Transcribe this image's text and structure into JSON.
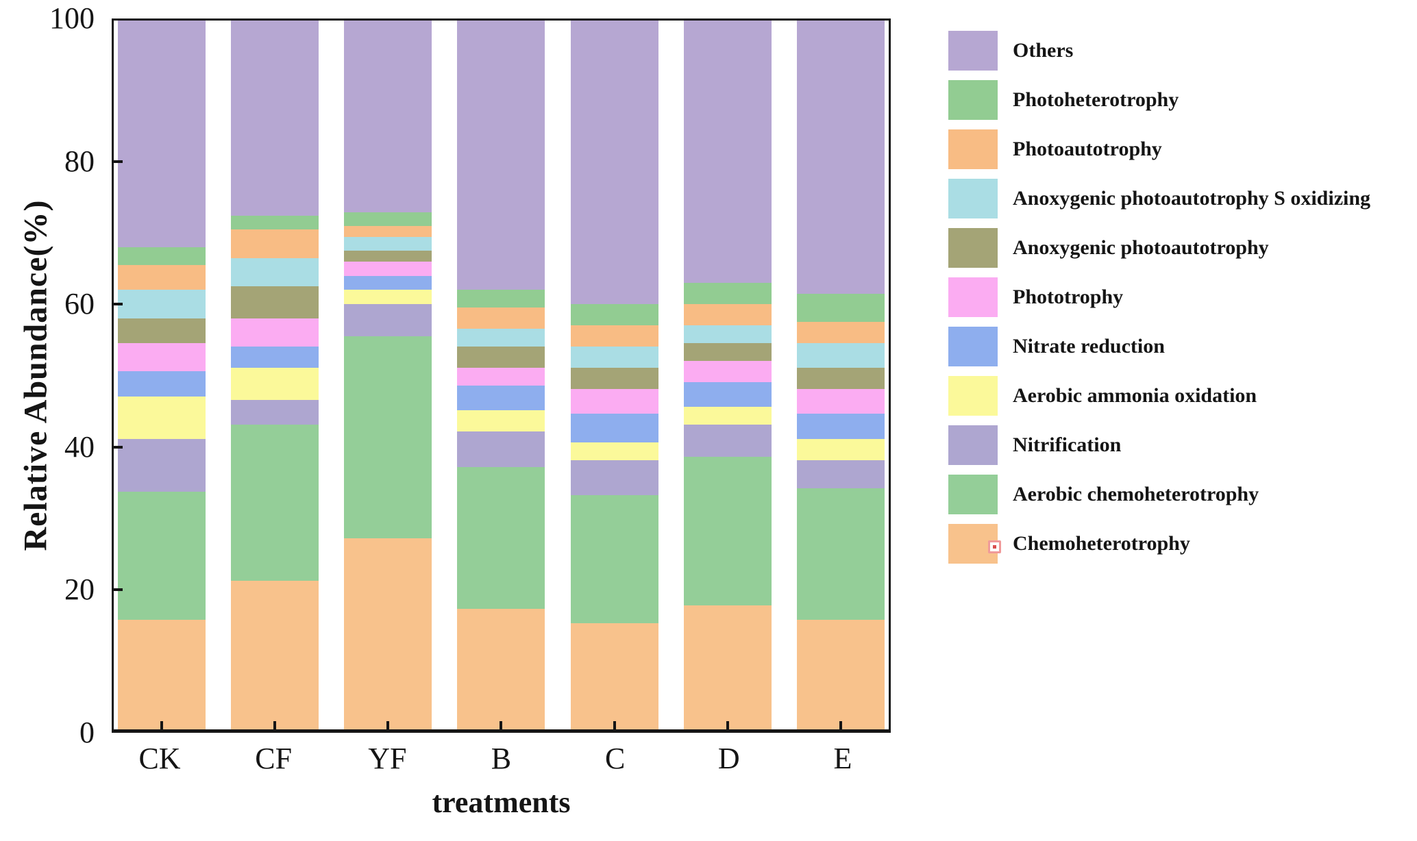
{
  "chart_data": {
    "type": "bar",
    "stacked": true,
    "title": "",
    "xlabel": "treatments",
    "ylabel": "Relative Abundance(%)",
    "ylim": [
      0,
      100
    ],
    "y_ticks": [
      0,
      20,
      40,
      60,
      80,
      100
    ],
    "grid": false,
    "legend_position": "right",
    "categories": [
      "CK",
      "CF",
      "YF",
      "B",
      "C",
      "D",
      "E"
    ],
    "series": [
      {
        "name": "Chemoheterotrophy",
        "color": "#f8c28c",
        "values": [
          15.5,
          21,
          27,
          17,
          15,
          17.5,
          15.5
        ]
      },
      {
        "name": "Aerobic chemoheterotrophy",
        "color": "#94ce98",
        "values": [
          18,
          22,
          28.5,
          20,
          18,
          21,
          18.5
        ]
      },
      {
        "name": "Nitrification",
        "color": "#aea6d0",
        "values": [
          7.5,
          3.5,
          4.5,
          5,
          5,
          4.5,
          4
        ]
      },
      {
        "name": "Aerobic ammonia oxidation",
        "color": "#fbf99a",
        "values": [
          6,
          4.5,
          2,
          3,
          2.5,
          2.5,
          3
        ]
      },
      {
        "name": "Nitrate reduction",
        "color": "#8eaeee",
        "values": [
          3.5,
          3,
          2,
          3.5,
          4,
          3.5,
          3.5
        ]
      },
      {
        "name": "Phototrophy",
        "color": "#fbacf2",
        "values": [
          4,
          4,
          2,
          2.5,
          3.5,
          3,
          3.5
        ]
      },
      {
        "name": "Anoxygenic photoautotrophy",
        "color": "#a4a476",
        "values": [
          3.5,
          4.5,
          1.5,
          3,
          3,
          2.5,
          3
        ]
      },
      {
        "name": "Anoxygenic photoautotrophy S oxidizing",
        "color": "#aadde4",
        "values": [
          4,
          4,
          2,
          2.5,
          3,
          2.5,
          3.5
        ]
      },
      {
        "name": "Photoautotrophy",
        "color": "#f8bc84",
        "values": [
          3.5,
          4,
          1.5,
          3,
          3,
          3,
          3
        ]
      },
      {
        "name": "Photoheterotrophy",
        "color": "#92cc92",
        "values": [
          2.5,
          2,
          2,
          2.5,
          3,
          3,
          4
        ]
      },
      {
        "name": "Others",
        "color": "#b6a7d2",
        "values": [
          32,
          27.5,
          27,
          38,
          40,
          37,
          38.5
        ]
      }
    ],
    "legend": {
      "order": "top-to-bottom is reverse of stacking",
      "artifact_icon_on": "Chemoheterotrophy"
    }
  }
}
